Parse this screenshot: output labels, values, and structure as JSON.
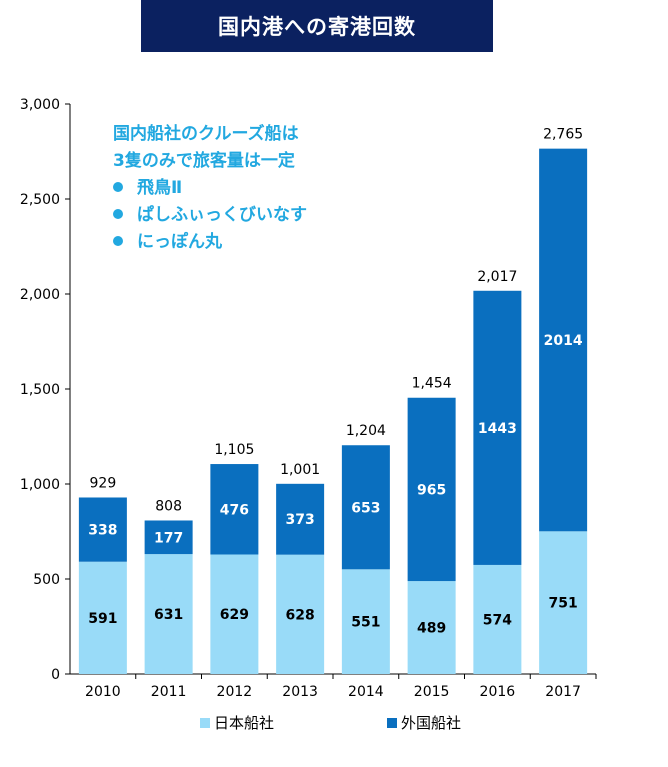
{
  "title": "国内港への寄港回数",
  "annotation": {
    "lines": [
      "国内船社のクルーズ船は",
      "3隻のみで旅客量は一定"
    ],
    "bullets": [
      "飛鳥Ⅱ",
      "ぱしふぃっくびいなす",
      "にっぽん丸"
    ]
  },
  "colors": {
    "domestic": "#99dbf8",
    "foreign": "#0a6fbf",
    "annotation": "#22a8e0",
    "title_bg": "#0b2160"
  },
  "chart_data": {
    "type": "bar",
    "stacked": true,
    "categories": [
      "2010",
      "2011",
      "2012",
      "2013",
      "2014",
      "2015",
      "2016",
      "2017"
    ],
    "series": [
      {
        "name": "日本船社",
        "values": [
          591,
          631,
          629,
          628,
          551,
          489,
          574,
          751
        ]
      },
      {
        "name": "外国船社",
        "values": [
          338,
          177,
          476,
          373,
          653,
          965,
          1443,
          2014
        ]
      }
    ],
    "totals": [
      929,
      808,
      1105,
      1001,
      1204,
      1454,
      2017,
      2765
    ],
    "total_labels": [
      "929",
      "808",
      "1,105",
      "1,001",
      "1,204",
      "1,454",
      "2,017",
      "2,765"
    ],
    "ylim": [
      0,
      3000
    ],
    "yticks": [
      0,
      500,
      1000,
      1500,
      2000,
      2500,
      3000
    ],
    "ytick_labels": [
      "0",
      "500",
      "1,000",
      "1,500",
      "2,000",
      "2,500",
      "3,000"
    ],
    "legend_position": "bottom",
    "grid": false
  }
}
